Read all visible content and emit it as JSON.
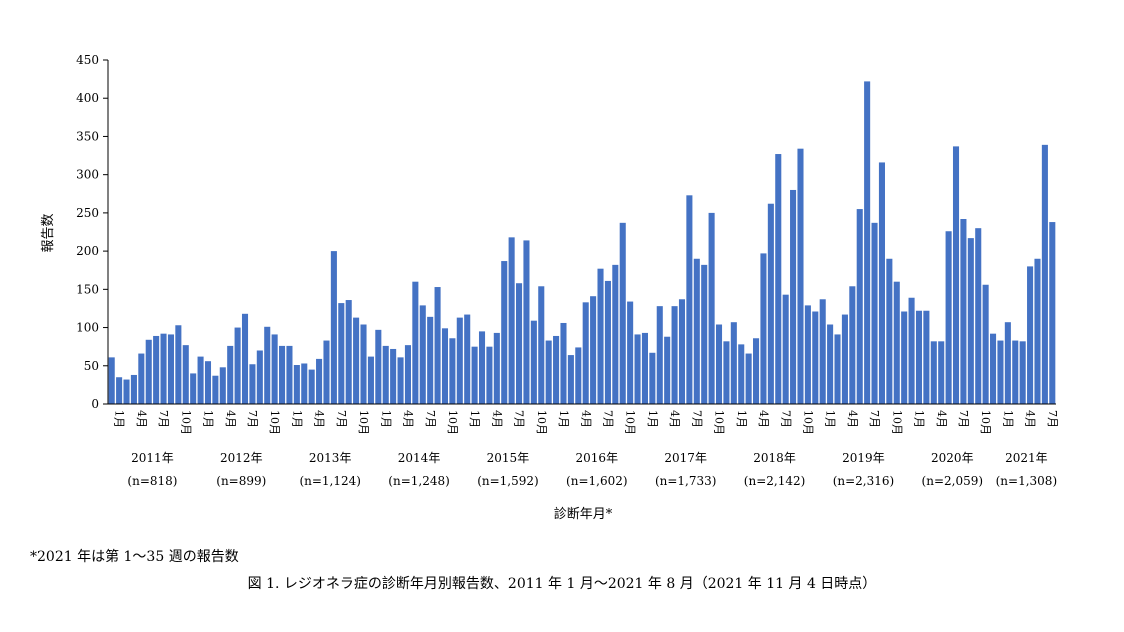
{
  "chart_data": {
    "type": "bar",
    "ylabel": "報告数",
    "xlabel": "診断年月*",
    "ylim": [
      0,
      450
    ],
    "yticks": [
      0,
      50,
      100,
      150,
      200,
      250,
      300,
      350,
      400,
      450
    ],
    "month_tick_labels": [
      "1月",
      "4月",
      "7月",
      "10月"
    ],
    "bar_color": "#4472C4",
    "grid": false,
    "years": [
      {
        "label": "2011年",
        "count": "(n=818)",
        "values": [
          61,
          35,
          32,
          38,
          66,
          84,
          89,
          92,
          91,
          103,
          77,
          40
        ]
      },
      {
        "label": "2012年",
        "count": "(n=899)",
        "values": [
          62,
          56,
          37,
          48,
          76,
          100,
          118,
          52,
          70,
          101,
          91,
          76
        ]
      },
      {
        "label": "2013年",
        "count": "(n=1,124)",
        "values": [
          76,
          51,
          53,
          45,
          59,
          83,
          200,
          132,
          136,
          113,
          104,
          62
        ]
      },
      {
        "label": "2014年",
        "count": "(n=1,248)",
        "values": [
          97,
          76,
          72,
          61,
          77,
          160,
          129,
          114,
          153,
          99,
          86,
          113
        ]
      },
      {
        "label": "2015年",
        "count": "(n=1,592)",
        "values": [
          117,
          75,
          95,
          75,
          93,
          187,
          218,
          158,
          214,
          109,
          154,
          83
        ]
      },
      {
        "label": "2016年",
        "count": "(n=1,602)",
        "values": [
          89,
          106,
          64,
          74,
          133,
          141,
          177,
          161,
          182,
          237,
          134,
          91
        ]
      },
      {
        "label": "2017年",
        "count": "(n=1,733)",
        "values": [
          93,
          67,
          128,
          88,
          128,
          137,
          273,
          190,
          182,
          250,
          104,
          82
        ]
      },
      {
        "label": "2018年",
        "count": "(n=2,142)",
        "values": [
          107,
          78,
          66,
          86,
          197,
          262,
          327,
          143,
          280,
          334,
          129,
          121
        ]
      },
      {
        "label": "2019年",
        "count": "(n=2,316)",
        "values": [
          137,
          104,
          91,
          117,
          154,
          255,
          422,
          237,
          316,
          190,
          160,
          121
        ]
      },
      {
        "label": "2020年",
        "count": "(n=2,059)",
        "values": [
          139,
          122,
          122,
          82,
          82,
          226,
          337,
          242,
          217,
          230,
          156,
          92
        ]
      },
      {
        "label": "2021年",
        "count": "(n=1,308)",
        "values": [
          83,
          107,
          83,
          82,
          180,
          190,
          339,
          238
        ]
      }
    ]
  },
  "footnote": "*2021 年は第 1〜35 週の報告数",
  "caption": "図 1.  レジオネラ症の診断年月別報告数、2011 年 1 月〜2021 年 8 月（2021 年 11 月 4 日時点）"
}
